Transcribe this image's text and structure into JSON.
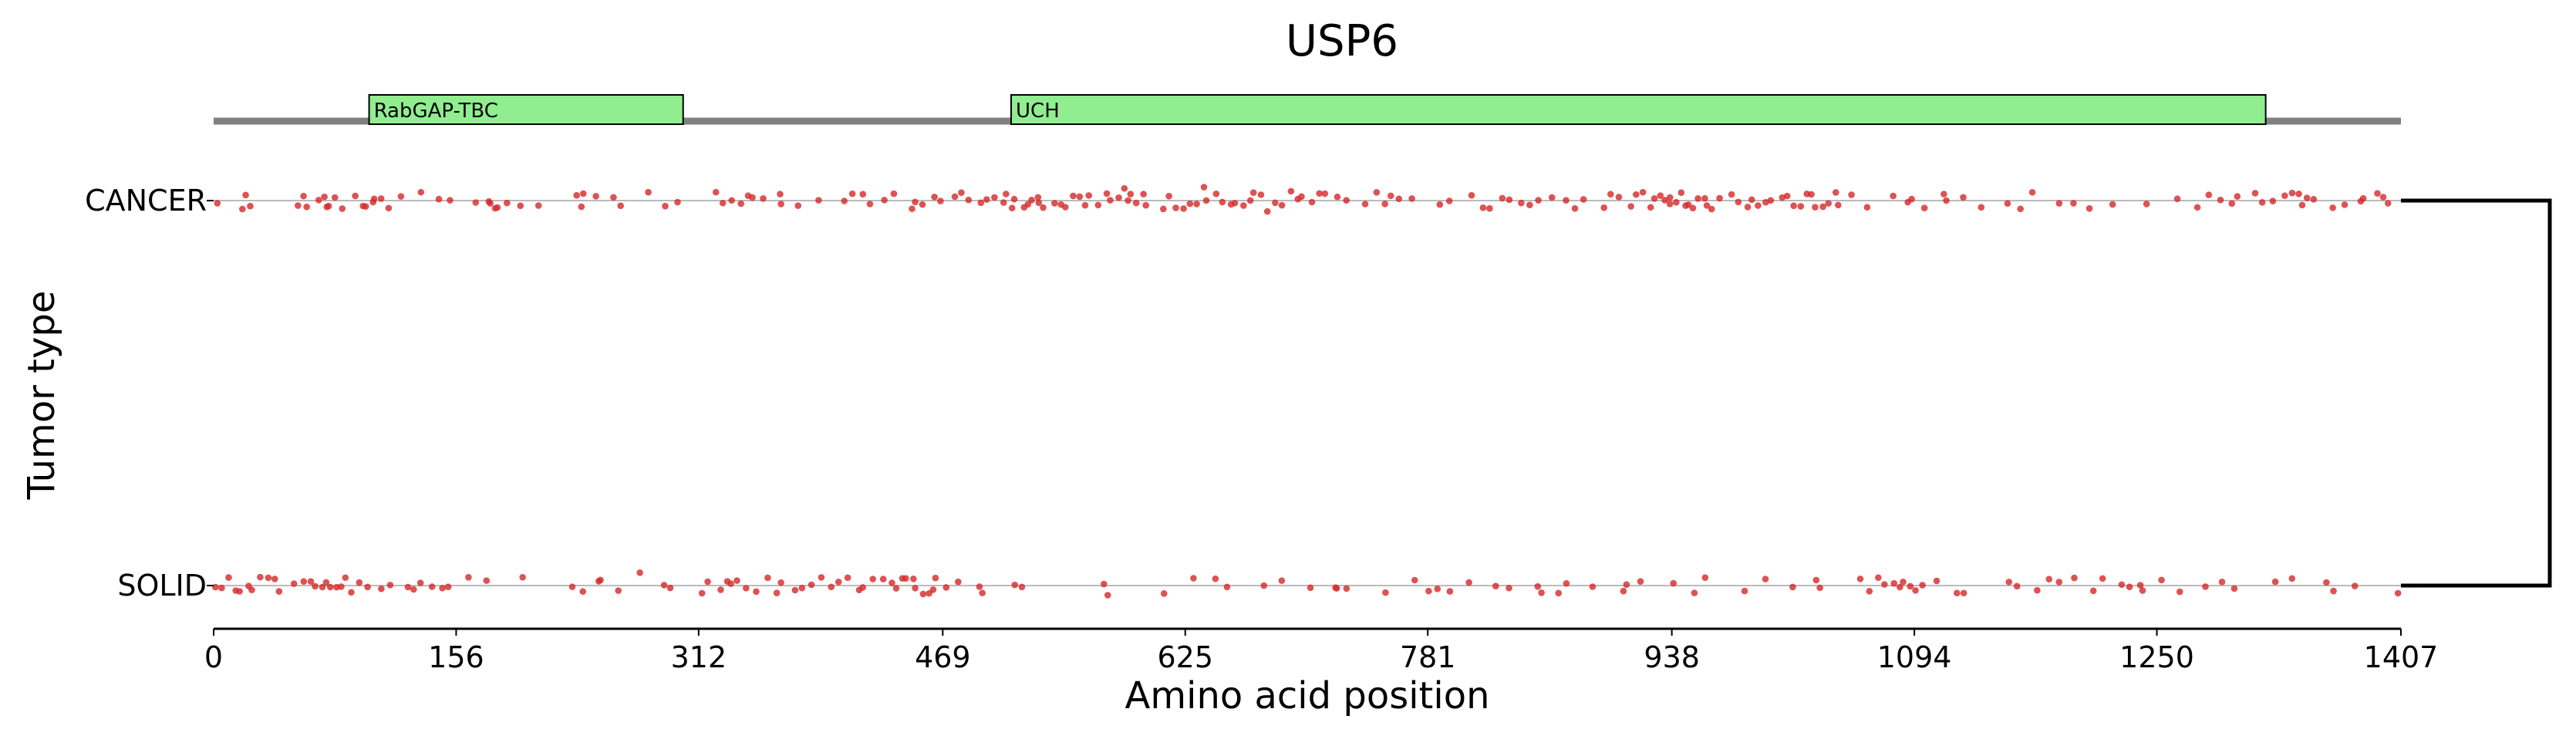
{
  "chart_data": {
    "type": "scatter",
    "title": "USP6",
    "xlabel": "Amino acid position",
    "ylabel": "Tumor type",
    "xlim": [
      0,
      1407
    ],
    "xticks": [
      0,
      156,
      312,
      469,
      625,
      781,
      938,
      1094,
      1250,
      1407
    ],
    "categories": [
      "CANCER",
      "SOLID"
    ],
    "protein_length": 1407,
    "domains": [
      {
        "name": "RabGAP-TBC",
        "start": 100,
        "end": 302
      },
      {
        "name": "UCH",
        "start": 513,
        "end": 1320
      }
    ],
    "domain_color": "#90ee90",
    "point_color": "#d62728",
    "backbone_color": "#808080",
    "grid": false,
    "dendrogram": true,
    "series": [
      {
        "name": "CANCER",
        "positions": [
          2,
          18,
          20,
          24,
          54,
          57,
          61,
          68,
          70,
          73,
          75,
          78,
          82,
          90,
          96,
          99,
          102,
          104,
          108,
          114,
          120,
          134,
          144,
          151,
          170,
          177,
          178,
          181,
          184,
          189,
          198,
          209,
          233,
          236,
          239,
          245,
          258,
          262,
          279,
          289,
          299,
          323,
          327,
          332,
          339,
          344,
          347,
          354,
          363,
          364,
          376,
          388,
          406,
          412,
          417,
          423,
          432,
          438,
          450,
          452,
          455,
          463,
          467,
          476,
          481,
          485,
          494,
          497,
          501,
          507,
          510,
          515,
          516,
          520,
          523,
          525,
          530,
          532,
          535,
          540,
          545,
          549,
          552,
          556,
          560,
          562,
          570,
          575,
          578,
          581,
          585,
          588,
          590,
          594,
          598,
          601,
          610,
          614,
          619,
          624,
          628,
          633,
          636,
          640,
          644,
          648,
          653,
          658,
          662,
          667,
          670,
          674,
          678,
          682,
          688,
          692,
          697,
          701,
          706,
          712,
          716,
          724,
          730,
          741,
          749,
          753,
          758,
          763,
          771,
          790,
          794,
          810,
          817,
          822,
          829,
          833,
          840,
          847,
          852,
          860,
          869,
          876,
          881,
          893,
          898,
          905,
          913,
          916,
          920,
          923,
          927,
          930,
          933,
          936,
          938,
          941,
          944,
          947,
          950,
          953,
          956,
          959,
          962,
          965,
          970,
          975,
          981,
          986,
          990,
          994,
          998,
          1003,
          1008,
          1012,
          1016,
          1020,
          1024,
          1028,
          1031,
          1034,
          1038,
          1042,
          1046,
          1054,
          1063,
          1080,
          1090,
          1093,
          1101,
          1112,
          1116,
          1124,
          1138,
          1154,
          1161,
          1171,
          1186,
          1197,
          1206,
          1222,
          1243,
          1262,
          1276,
          1283,
          1292,
          1297,
          1301,
          1313,
          1319,
          1325,
          1331,
          1336,
          1340,
          1344,
          1347,
          1352,
          1362,
          1370,
          1380,
          1384,
          1391,
          1396,
          1398
        ]
      },
      {
        "name": "SOLID",
        "positions": [
          2,
          6,
          9,
          13,
          16,
          22,
          26,
          30,
          36,
          40,
          42,
          52,
          58,
          62,
          66,
          70,
          73,
          76,
          79,
          82,
          86,
          90,
          95,
          100,
          109,
          115,
          124,
          130,
          134,
          140,
          146,
          152,
          164,
          177,
          200,
          230,
          237,
          247,
          250,
          261,
          273,
          290,
          294,
          314,
          318,
          325,
          329,
          332,
          337,
          342,
          350,
          357,
          361,
          366,
          373,
          378,
          384,
          390,
          396,
          403,
          409,
          414,
          419,
          425,
          431,
          437,
          440,
          443,
          446,
          449,
          452,
          455,
          459,
          462,
          465,
          471,
          480,
          492,
          495,
          515,
          519,
          573,
          576,
          611,
          629,
          644,
          652,
          677,
          688,
          705,
          721,
          722,
          729,
          754,
          773,
          783,
          786,
          796,
          807,
          825,
          833,
          853,
          855,
          866,
          870,
          887,
          906,
          908,
          919,
          939,
          953,
          959,
          985,
          997,
          1016,
          1031,
          1034,
          1060,
          1064,
          1071,
          1076,
          1082,
          1084,
          1088,
          1092,
          1096,
          1100,
          1108,
          1120,
          1126,
          1155,
          1160,
          1174,
          1180,
          1186,
          1197,
          1209,
          1216,
          1226,
          1233,
          1238,
          1241,
          1254,
          1266,
          1280,
          1291,
          1301,
          1327,
          1338,
          1359,
          1365,
          1376,
          1405
        ]
      }
    ]
  }
}
